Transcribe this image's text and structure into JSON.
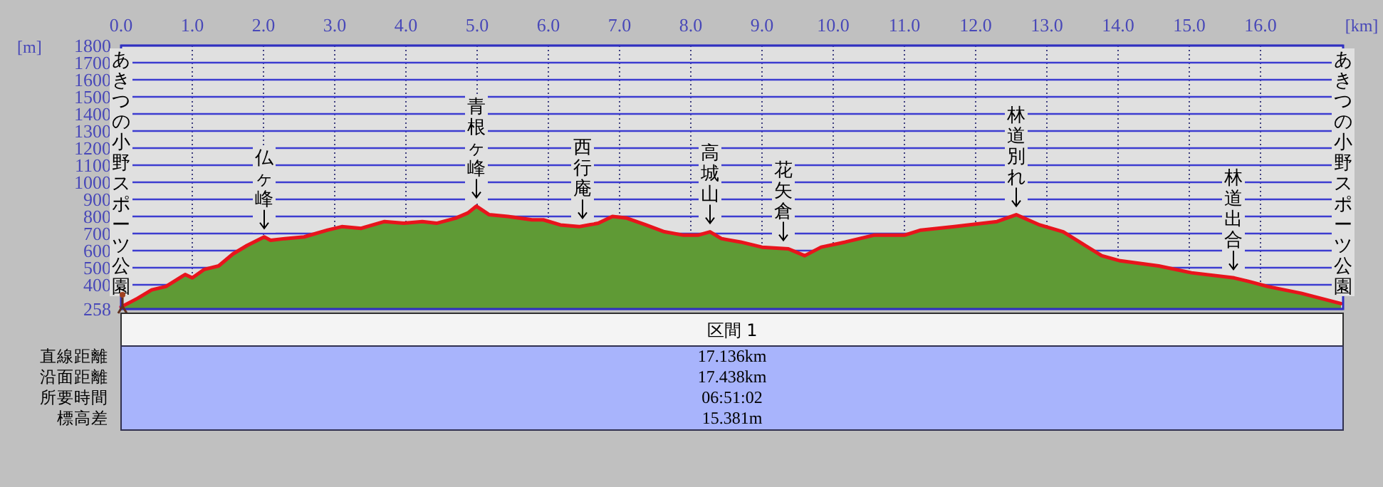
{
  "chart_data": {
    "type": "area",
    "xlabel": "[km]",
    "ylabel": "[m]",
    "x": [
      0,
      0.23,
      0.43,
      0.63,
      0.9,
      1.0,
      1.17,
      1.37,
      1.57,
      1.77,
      2.01,
      2.1,
      2.3,
      2.57,
      2.9,
      3.1,
      3.37,
      3.7,
      3.97,
      4.23,
      4.43,
      4.7,
      4.87,
      4.99,
      5.17,
      5.43,
      5.77,
      5.93,
      6.17,
      6.43,
      6.7,
      6.9,
      7.1,
      7.37,
      7.63,
      7.9,
      8.1,
      8.27,
      8.43,
      8.7,
      9.0,
      9.37,
      9.6,
      9.83,
      10.17,
      10.57,
      11.0,
      11.23,
      11.7,
      12.3,
      12.57,
      12.9,
      13.23,
      13.5,
      13.77,
      14.03,
      14.57,
      15.03,
      15.63,
      15.83,
      16.1,
      16.57,
      17.13
    ],
    "series": [
      {
        "color": "#5f9a35",
        "values": [
          270,
          320,
          370,
          390,
          460,
          440,
          490,
          510,
          580,
          630,
          680,
          660,
          670,
          680,
          720,
          740,
          730,
          770,
          760,
          770,
          760,
          790,
          820,
          860,
          810,
          800,
          780,
          780,
          750,
          740,
          760,
          800,
          790,
          750,
          710,
          690,
          690,
          710,
          670,
          650,
          620,
          610,
          570,
          620,
          650,
          690,
          690,
          720,
          740,
          770,
          810,
          750,
          710,
          640,
          570,
          540,
          510,
          470,
          440,
          420,
          390,
          350,
          290
        ]
      },
      {
        "type": "line",
        "color": "#e8141c",
        "values": [
          270,
          320,
          370,
          390,
          460,
          440,
          490,
          510,
          580,
          630,
          680,
          660,
          670,
          680,
          720,
          740,
          730,
          770,
          760,
          770,
          760,
          790,
          820,
          860,
          810,
          800,
          780,
          780,
          750,
          740,
          760,
          800,
          790,
          750,
          710,
          690,
          690,
          710,
          670,
          650,
          620,
          610,
          570,
          620,
          650,
          690,
          690,
          720,
          740,
          770,
          810,
          750,
          710,
          640,
          570,
          540,
          510,
          470,
          440,
          420,
          390,
          350,
          290
        ]
      }
    ],
    "xlim": [
      0,
      17.16
    ],
    "ylim": [
      258,
      1800
    ],
    "xticks": [
      {
        "value": 0,
        "label": "0.0"
      },
      {
        "value": 1,
        "label": "1.0"
      },
      {
        "value": 2,
        "label": "2.0"
      },
      {
        "value": 3,
        "label": "3.0"
      },
      {
        "value": 4,
        "label": "4.0"
      },
      {
        "value": 5,
        "label": "5.0"
      },
      {
        "value": 6,
        "label": "6.0"
      },
      {
        "value": 7,
        "label": "7.0"
      },
      {
        "value": 8,
        "label": "8.0"
      },
      {
        "value": 9,
        "label": "9.0"
      },
      {
        "value": 10,
        "label": "10.0"
      },
      {
        "value": 11,
        "label": "11.0"
      },
      {
        "value": 12,
        "label": "12.0"
      },
      {
        "value": 13,
        "label": "13.0"
      },
      {
        "value": 14,
        "label": "14.0"
      },
      {
        "value": 15,
        "label": "15.0"
      },
      {
        "value": 16,
        "label": "16.0"
      }
    ],
    "yticks": [
      258,
      400,
      500,
      600,
      700,
      800,
      900,
      1000,
      1100,
      1200,
      1300,
      1400,
      1500,
      1600,
      1700,
      1800
    ],
    "grid": true,
    "annotations": [
      "あきつの小野スポーツ公園",
      {
        "text": "仏ヶ峰",
        "x": 2.01,
        "y": 680
      },
      {
        "text": "青根ヶ峰",
        "x": 4.99,
        "y": 860
      },
      {
        "text": "西行庵",
        "x": 6.48,
        "y": 740
      },
      {
        "text": "高城山",
        "x": 8.27,
        "y": 710
      },
      {
        "text": "花矢倉",
        "x": 9.3,
        "y": 610
      },
      {
        "text": "林道別れ",
        "x": 12.57,
        "y": 810
      },
      {
        "text": "林道出合",
        "x": 15.62,
        "y": 440
      },
      "あきつの小野スポーツ公園",
      "区間 1",
      "直線距離",
      "17.136km",
      "沿面距離",
      "17.438km",
      "所要時間",
      "06:51:02",
      "標高差",
      "15.381m"
    ]
  }
}
